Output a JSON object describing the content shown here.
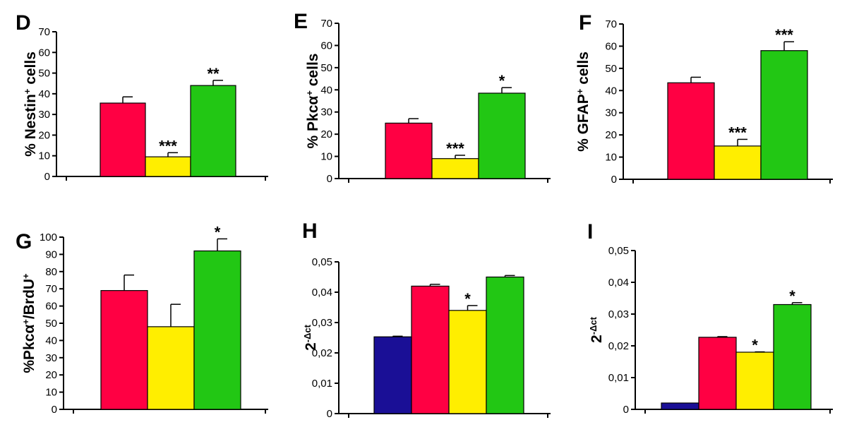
{
  "colors": {
    "blue": "#1a0f96",
    "red": "#ff0043",
    "yellow": "#ffee00",
    "green": "#22c714"
  },
  "chart_data": [
    {
      "panel": "D",
      "type": "bar",
      "ylabel_parts": [
        {
          "t": "% Nestin",
          "sup": false
        },
        {
          "t": "+",
          "sup": true
        },
        {
          "t": " cells",
          "sup": false
        }
      ],
      "ylim": [
        0,
        70
      ],
      "yticks": [
        0,
        10,
        20,
        30,
        40,
        50,
        60,
        70
      ],
      "tick_labels": [
        "0",
        "10",
        "20",
        "30",
        "40",
        "50",
        "60",
        "70"
      ],
      "bars": [
        {
          "color": "red",
          "value": 35.5,
          "err": 3
        },
        {
          "color": "yellow",
          "value": 9.5,
          "err": 2,
          "sig": "***"
        },
        {
          "color": "green",
          "value": 44,
          "err": 2.5,
          "sig": "**"
        }
      ]
    },
    {
      "panel": "E",
      "type": "bar",
      "ylabel_parts": [
        {
          "t": "% Pkc",
          "sup": false
        },
        {
          "t": "α",
          "sup": false
        },
        {
          "t": "+",
          "sup": true
        },
        {
          "t": " cells",
          "sup": false
        }
      ],
      "ylim": [
        0,
        70
      ],
      "yticks": [
        0,
        10,
        20,
        30,
        40,
        50,
        60,
        70
      ],
      "tick_labels": [
        "0",
        "10",
        "20",
        "30",
        "40",
        "50",
        "60",
        "70"
      ],
      "bars": [
        {
          "color": "red",
          "value": 25,
          "err": 2
        },
        {
          "color": "yellow",
          "value": 9,
          "err": 1.5,
          "sig": "***"
        },
        {
          "color": "green",
          "value": 38.5,
          "err": 2.5,
          "sig": "*"
        }
      ]
    },
    {
      "panel": "F",
      "type": "bar",
      "ylabel_parts": [
        {
          "t": "% GFAP",
          "sup": false
        },
        {
          "t": "+",
          "sup": true
        },
        {
          "t": " cells",
          "sup": false
        }
      ],
      "ylim": [
        0,
        70
      ],
      "yticks": [
        0,
        10,
        20,
        30,
        40,
        50,
        60,
        70
      ],
      "tick_labels": [
        "0",
        "10",
        "20",
        "30",
        "40",
        "50",
        "60",
        "70"
      ],
      "bars": [
        {
          "color": "red",
          "value": 43.5,
          "err": 2.5
        },
        {
          "color": "yellow",
          "value": 15,
          "err": 3,
          "sig": "***"
        },
        {
          "color": "green",
          "value": 58,
          "err": 4,
          "sig": "***"
        }
      ]
    },
    {
      "panel": "G",
      "type": "bar",
      "ylabel_parts": [
        {
          "t": "%Pkc",
          "sup": false
        },
        {
          "t": "α",
          "sup": false
        },
        {
          "t": "+",
          "sup": true
        },
        {
          "t": "/BrdU",
          "sup": false
        },
        {
          "t": "+",
          "sup": true
        }
      ],
      "ylim": [
        0,
        100
      ],
      "yticks": [
        0,
        10,
        20,
        30,
        40,
        50,
        60,
        70,
        80,
        90,
        100
      ],
      "tick_labels": [
        "0",
        "10",
        "20",
        "30",
        "40",
        "50",
        "60",
        "70",
        "80",
        "90",
        "100"
      ],
      "bars": [
        {
          "color": "red",
          "value": 69,
          "err": 9
        },
        {
          "color": "yellow",
          "value": 48,
          "err": 13
        },
        {
          "color": "green",
          "value": 92,
          "err": 7,
          "sig": "*"
        }
      ]
    },
    {
      "panel": "H",
      "type": "bar",
      "ylabel_parts": [
        {
          "t": "2",
          "sup": false
        },
        {
          "t": "-Δct",
          "sup": true
        }
      ],
      "ylim": [
        0,
        0.05
      ],
      "yticks": [
        0,
        0.01,
        0.02,
        0.03,
        0.04,
        0.05
      ],
      "tick_labels": [
        "0",
        "0,01",
        "0,02",
        "0,03",
        "0,04",
        "0,05"
      ],
      "bars": [
        {
          "color": "blue",
          "value": 0.0253,
          "err": 0.0002
        },
        {
          "color": "red",
          "value": 0.042,
          "err": 0.0006
        },
        {
          "color": "yellow",
          "value": 0.034,
          "err": 0.0016,
          "sig": "*"
        },
        {
          "color": "green",
          "value": 0.045,
          "err": 0.0005
        }
      ]
    },
    {
      "panel": "I",
      "type": "bar",
      "ylabel_parts": [
        {
          "t": "2",
          "sup": false
        },
        {
          "t": "-Δct",
          "sup": true
        }
      ],
      "ylim": [
        0,
        0.05
      ],
      "yticks": [
        0,
        0.01,
        0.02,
        0.03,
        0.04,
        0.05
      ],
      "tick_labels": [
        "0",
        "0,01",
        "0,02",
        "0,03",
        "0,04",
        "0,05"
      ],
      "bars": [
        {
          "color": "blue",
          "value": 0.002,
          "err": 0
        },
        {
          "color": "red",
          "value": 0.0227,
          "err": 0.0002
        },
        {
          "color": "yellow",
          "value": 0.018,
          "err": 0.0001,
          "sig": "*"
        },
        {
          "color": "green",
          "value": 0.033,
          "err": 0.0006,
          "sig": "*"
        }
      ]
    }
  ]
}
